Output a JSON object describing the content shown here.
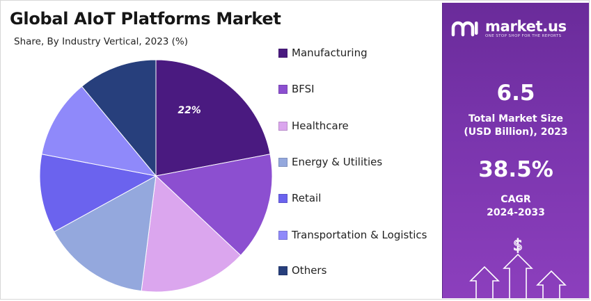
{
  "header": {
    "title": "Global AIoT Platforms Market",
    "subtitle": "Share, By Industry Vertical, 2023 (%)"
  },
  "chart_data": {
    "type": "pie",
    "title": "Global AIoT Platforms Market",
    "subtitle": "Share, By Industry Vertical, 2023 (%)",
    "categories": [
      "Manufacturing",
      "BFSI",
      "Healthcare",
      "Energy & Utilities",
      "Retail",
      "Transportation & Logistics",
      "Others"
    ],
    "values": [
      22,
      15,
      15,
      15,
      11,
      11,
      11
    ],
    "colors": [
      "#4a1a80",
      "#8c4fd0",
      "#dba6ee",
      "#94a8dd",
      "#6b63ee",
      "#8f89fa",
      "#273f7c"
    ],
    "data_labels": [
      {
        "category": "Manufacturing",
        "text": "22%"
      }
    ],
    "legend_position": "right"
  },
  "panel": {
    "brand_name": "market.us",
    "brand_tagline": "ONE STOP SHOP FOR THE REPORTS",
    "stat1_value": "6.5",
    "stat1_label_line1": "Total Market Size",
    "stat1_label_line2": "(USD Billion), 2023",
    "stat2_value": "38.5%",
    "stat2_label_line1": "CAGR",
    "stat2_label_line2": "2024-2033",
    "icons": [
      "dollar-sign-icon",
      "growth-arrows-icon"
    ]
  }
}
